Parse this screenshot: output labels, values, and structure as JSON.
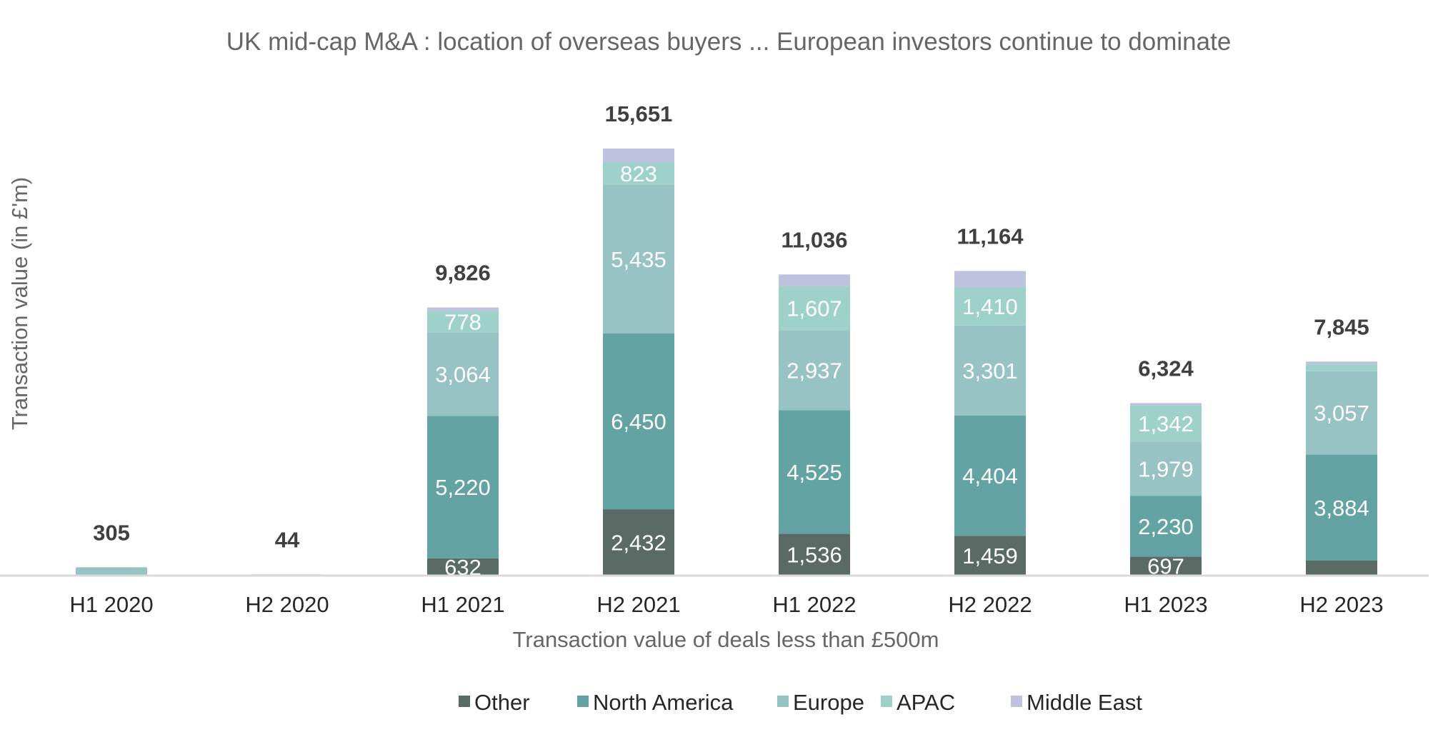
{
  "chart_data": {
    "type": "bar",
    "stacked": true,
    "title": "UK mid-cap M&A : location of overseas buyers ... European investors continue to dominate",
    "xlabel": "Transaction value of deals less than £500m",
    "ylabel": "Transaction value (in £'m)",
    "categories": [
      "H1 2020",
      "H2 2020",
      "H1 2021",
      "H2 2021",
      "H1 2022",
      "H2 2022",
      "H1 2023",
      "H2 2023"
    ],
    "series": [
      {
        "name": "Other",
        "color": "#596B64",
        "values": [
          0,
          0,
          632,
          2432,
          1536,
          1459,
          697,
          550
        ],
        "labels": [
          "",
          "",
          "632",
          "2,432",
          "1,536",
          "1,459",
          "697",
          ""
        ]
      },
      {
        "name": "North America",
        "color": "#64A3A3",
        "values": [
          0,
          0,
          5220,
          6450,
          4525,
          4404,
          2230,
          3884
        ],
        "labels": [
          "",
          "",
          "5,220",
          "6,450",
          "4,525",
          "4,404",
          "2,230",
          "3,884"
        ]
      },
      {
        "name": "Europe",
        "color": "#98C3C5",
        "values": [
          305,
          44,
          3064,
          5435,
          2937,
          3301,
          1979,
          3057
        ],
        "labels": [
          "",
          "",
          "3,064",
          "5,435",
          "2,937",
          "3,301",
          "1,979",
          "3,057"
        ]
      },
      {
        "name": "APAC",
        "color": "#9ED1C9",
        "values": [
          0,
          0,
          778,
          823,
          1607,
          1410,
          1342,
          254
        ],
        "labels": [
          "",
          "",
          "778",
          "823",
          "1,607",
          "1,410",
          "1,342",
          ""
        ]
      },
      {
        "name": "Middle East",
        "color": "#BFC2DE",
        "values": [
          0,
          0,
          132,
          511,
          431,
          590,
          76,
          100
        ],
        "labels": [
          "",
          "",
          "",
          "",
          "",
          "",
          "",
          ""
        ]
      }
    ],
    "totals": [
      305,
      44,
      9826,
      15651,
      11036,
      11164,
      6324,
      7845
    ],
    "total_labels": [
      "305",
      "44",
      "9,826",
      "15,651",
      "11,036",
      "11,164",
      "6,324",
      "7,845"
    ],
    "ylim": [
      0,
      16500
    ],
    "grid": false,
    "legend_position": "bottom"
  }
}
